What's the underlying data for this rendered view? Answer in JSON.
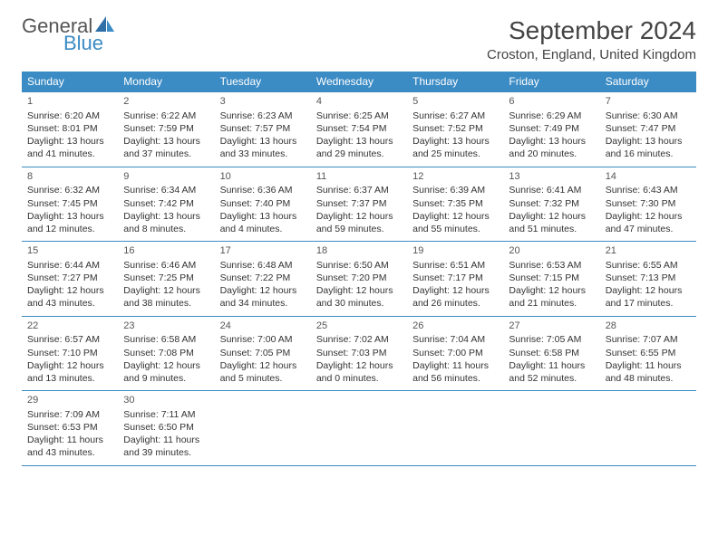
{
  "logo": {
    "text1": "General",
    "text2": "Blue"
  },
  "title": "September 2024",
  "location": "Croston, England, United Kingdom",
  "colors": {
    "header_bg": "#3b8bc4",
    "header_text": "#ffffff",
    "border": "#3b8bc4",
    "body_text": "#333333",
    "logo_gray": "#555555",
    "logo_blue": "#3b8bc4"
  },
  "weekdays": [
    "Sunday",
    "Monday",
    "Tuesday",
    "Wednesday",
    "Thursday",
    "Friday",
    "Saturday"
  ],
  "start_weekday": 0,
  "days": [
    {
      "n": 1,
      "sunrise": "6:20 AM",
      "sunset": "8:01 PM",
      "daylight": "13 hours and 41 minutes."
    },
    {
      "n": 2,
      "sunrise": "6:22 AM",
      "sunset": "7:59 PM",
      "daylight": "13 hours and 37 minutes."
    },
    {
      "n": 3,
      "sunrise": "6:23 AM",
      "sunset": "7:57 PM",
      "daylight": "13 hours and 33 minutes."
    },
    {
      "n": 4,
      "sunrise": "6:25 AM",
      "sunset": "7:54 PM",
      "daylight": "13 hours and 29 minutes."
    },
    {
      "n": 5,
      "sunrise": "6:27 AM",
      "sunset": "7:52 PM",
      "daylight": "13 hours and 25 minutes."
    },
    {
      "n": 6,
      "sunrise": "6:29 AM",
      "sunset": "7:49 PM",
      "daylight": "13 hours and 20 minutes."
    },
    {
      "n": 7,
      "sunrise": "6:30 AM",
      "sunset": "7:47 PM",
      "daylight": "13 hours and 16 minutes."
    },
    {
      "n": 8,
      "sunrise": "6:32 AM",
      "sunset": "7:45 PM",
      "daylight": "13 hours and 12 minutes."
    },
    {
      "n": 9,
      "sunrise": "6:34 AM",
      "sunset": "7:42 PM",
      "daylight": "13 hours and 8 minutes."
    },
    {
      "n": 10,
      "sunrise": "6:36 AM",
      "sunset": "7:40 PM",
      "daylight": "13 hours and 4 minutes."
    },
    {
      "n": 11,
      "sunrise": "6:37 AM",
      "sunset": "7:37 PM",
      "daylight": "12 hours and 59 minutes."
    },
    {
      "n": 12,
      "sunrise": "6:39 AM",
      "sunset": "7:35 PM",
      "daylight": "12 hours and 55 minutes."
    },
    {
      "n": 13,
      "sunrise": "6:41 AM",
      "sunset": "7:32 PM",
      "daylight": "12 hours and 51 minutes."
    },
    {
      "n": 14,
      "sunrise": "6:43 AM",
      "sunset": "7:30 PM",
      "daylight": "12 hours and 47 minutes."
    },
    {
      "n": 15,
      "sunrise": "6:44 AM",
      "sunset": "7:27 PM",
      "daylight": "12 hours and 43 minutes."
    },
    {
      "n": 16,
      "sunrise": "6:46 AM",
      "sunset": "7:25 PM",
      "daylight": "12 hours and 38 minutes."
    },
    {
      "n": 17,
      "sunrise": "6:48 AM",
      "sunset": "7:22 PM",
      "daylight": "12 hours and 34 minutes."
    },
    {
      "n": 18,
      "sunrise": "6:50 AM",
      "sunset": "7:20 PM",
      "daylight": "12 hours and 30 minutes."
    },
    {
      "n": 19,
      "sunrise": "6:51 AM",
      "sunset": "7:17 PM",
      "daylight": "12 hours and 26 minutes."
    },
    {
      "n": 20,
      "sunrise": "6:53 AM",
      "sunset": "7:15 PM",
      "daylight": "12 hours and 21 minutes."
    },
    {
      "n": 21,
      "sunrise": "6:55 AM",
      "sunset": "7:13 PM",
      "daylight": "12 hours and 17 minutes."
    },
    {
      "n": 22,
      "sunrise": "6:57 AM",
      "sunset": "7:10 PM",
      "daylight": "12 hours and 13 minutes."
    },
    {
      "n": 23,
      "sunrise": "6:58 AM",
      "sunset": "7:08 PM",
      "daylight": "12 hours and 9 minutes."
    },
    {
      "n": 24,
      "sunrise": "7:00 AM",
      "sunset": "7:05 PM",
      "daylight": "12 hours and 5 minutes."
    },
    {
      "n": 25,
      "sunrise": "7:02 AM",
      "sunset": "7:03 PM",
      "daylight": "12 hours and 0 minutes."
    },
    {
      "n": 26,
      "sunrise": "7:04 AM",
      "sunset": "7:00 PM",
      "daylight": "11 hours and 56 minutes."
    },
    {
      "n": 27,
      "sunrise": "7:05 AM",
      "sunset": "6:58 PM",
      "daylight": "11 hours and 52 minutes."
    },
    {
      "n": 28,
      "sunrise": "7:07 AM",
      "sunset": "6:55 PM",
      "daylight": "11 hours and 48 minutes."
    },
    {
      "n": 29,
      "sunrise": "7:09 AM",
      "sunset": "6:53 PM",
      "daylight": "11 hours and 43 minutes."
    },
    {
      "n": 30,
      "sunrise": "7:11 AM",
      "sunset": "6:50 PM",
      "daylight": "11 hours and 39 minutes."
    }
  ]
}
